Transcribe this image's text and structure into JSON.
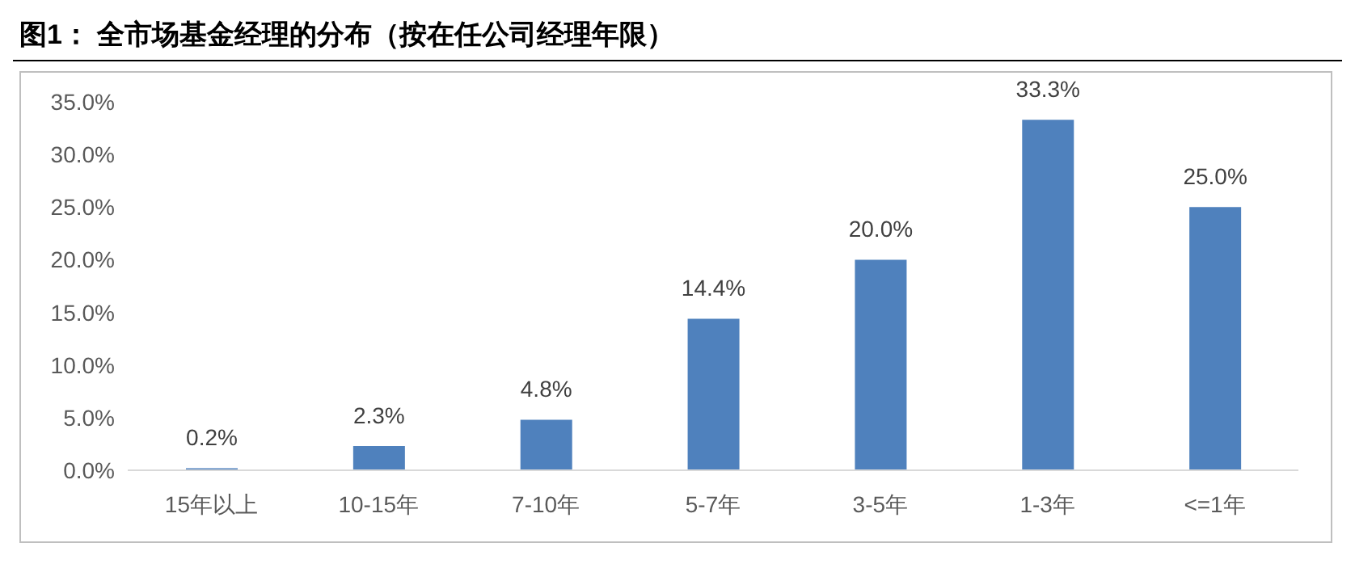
{
  "chart_data": {
    "type": "bar",
    "title": "图1： 全市场基金经理的分布（按在任公司经理年限）",
    "categories": [
      "15年以上",
      "10-15年",
      "7-10年",
      "5-7年",
      "3-5年",
      "1-3年",
      "<=1年"
    ],
    "values": [
      0.2,
      2.3,
      4.8,
      14.4,
      20.0,
      33.3,
      25.0
    ],
    "value_labels": [
      "0.2%",
      "2.3%",
      "4.8%",
      "14.4%",
      "20.0%",
      "33.3%",
      "25.0%"
    ],
    "color": "#4f81bd",
    "ylim": [
      0,
      35
    ],
    "yticks": [
      {
        "value": 0,
        "label": "0.0%"
      },
      {
        "value": 5,
        "label": "5.0%"
      },
      {
        "value": 10,
        "label": "10.0%"
      },
      {
        "value": 15,
        "label": "15.0%"
      },
      {
        "value": 20,
        "label": "20.0%"
      },
      {
        "value": 25,
        "label": "25.0%"
      },
      {
        "value": 30,
        "label": "30.0%"
      },
      {
        "value": 35,
        "label": "35.0%"
      }
    ],
    "grid": false,
    "legend": false
  }
}
